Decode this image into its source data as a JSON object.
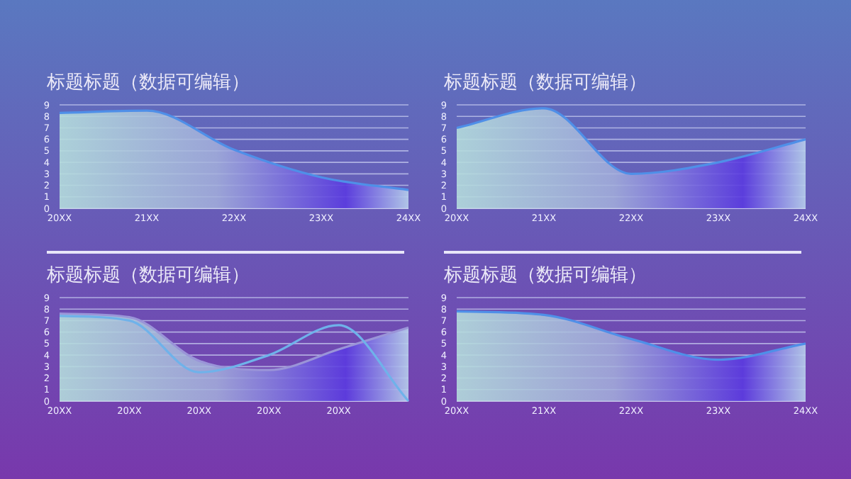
{
  "chart_data": [
    {
      "type": "area",
      "title": "标题标题（数据可编辑）",
      "categories": [
        "20XX",
        "21XX",
        "22XX",
        "23XX",
        "24XX"
      ],
      "ylim": [
        0,
        9
      ],
      "yticks": [
        0,
        1,
        2,
        3,
        4,
        5,
        6,
        7,
        8,
        9
      ],
      "grid": "y",
      "series": [
        {
          "color": "#4f8fe8",
          "values": [
            8.3,
            8.5,
            5.1,
            2.7,
            1.6
          ]
        }
      ]
    },
    {
      "type": "area",
      "title": "标题标题（数据可编辑）",
      "categories": [
        "20XX",
        "21XX",
        "22XX",
        "23XX",
        "24XX"
      ],
      "ylim": [
        0,
        9
      ],
      "yticks": [
        0,
        1,
        2,
        3,
        4,
        5,
        6,
        7,
        8,
        9
      ],
      "grid": "y",
      "series": [
        {
          "color": "#4f8fe8",
          "values": [
            7.0,
            8.7,
            3.0,
            4.0,
            6.0
          ]
        }
      ]
    },
    {
      "type": "area",
      "title": "标题标题（数据可编辑）",
      "categories": [
        "20XX",
        "20XX",
        "20XX",
        "20XX",
        "20XX",
        null
      ],
      "ylim": [
        0,
        9
      ],
      "yticks": [
        0,
        1,
        2,
        3,
        4,
        5,
        6,
        7,
        8,
        9
      ],
      "grid": "y",
      "series": [
        {
          "type": "area",
          "color": "#9a94d8",
          "values": [
            7.6,
            7.3,
            3.5,
            2.7,
            4.5,
            6.4
          ]
        },
        {
          "type": "line",
          "color": "#6fb2ea",
          "values": [
            7.4,
            7.0,
            2.5,
            4.0,
            6.6,
            0
          ]
        }
      ]
    },
    {
      "type": "area",
      "title": "标题标题（数据可编辑）",
      "categories": [
        "20XX",
        "21XX",
        "22XX",
        "23XX",
        "24XX"
      ],
      "ylim": [
        0,
        9
      ],
      "yticks": [
        0,
        1,
        2,
        3,
        4,
        5,
        6,
        7,
        8,
        9
      ],
      "grid": "y",
      "series": [
        {
          "color": "#4f8fe8",
          "values": [
            7.8,
            7.5,
            5.4,
            3.6,
            5.0
          ]
        }
      ]
    }
  ]
}
